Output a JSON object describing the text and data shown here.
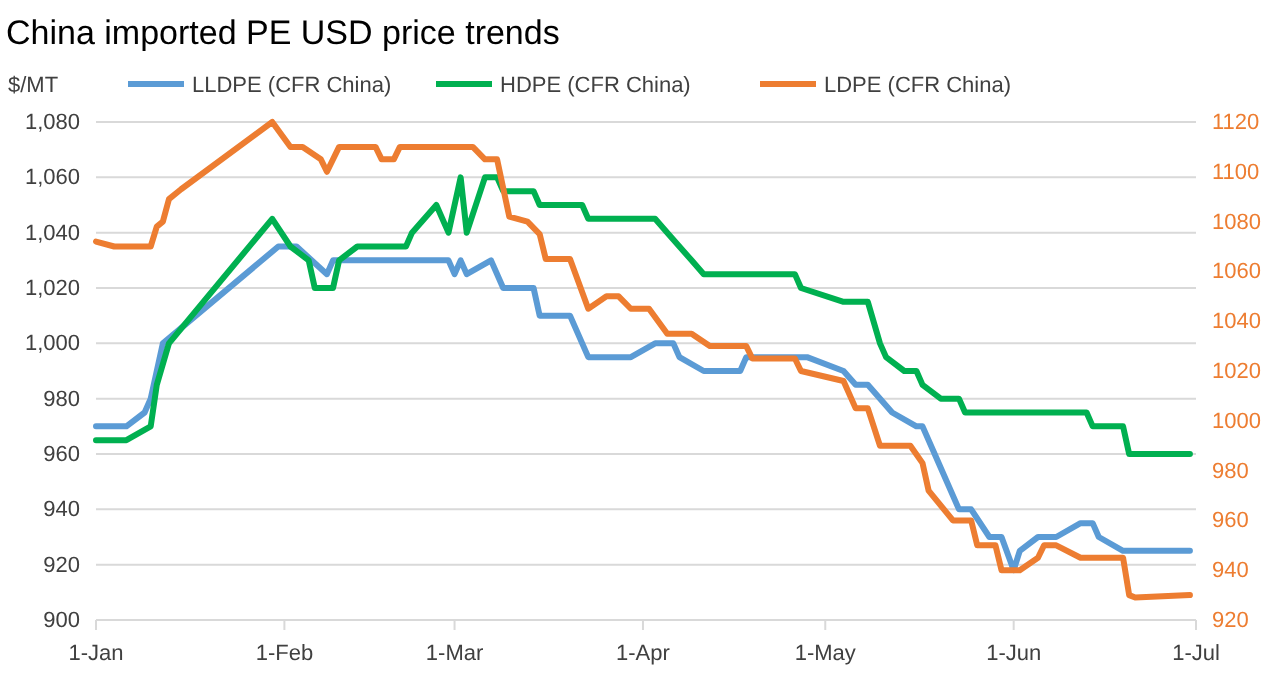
{
  "chart_data": {
    "type": "line",
    "title": "China imported PE USD price trends",
    "ylabel": "$/MT",
    "legend": "top",
    "grid": "y",
    "line_style": "solid",
    "marker": "none",
    "xlim": [
      "--01-01",
      "--07-01"
    ],
    "xticks": [
      {
        "value": "--01-01",
        "label": "1-Jan"
      },
      {
        "value": "--02-01",
        "label": "1-Feb"
      },
      {
        "value": "--03-01",
        "label": "1-Mar"
      },
      {
        "value": "--04-01",
        "label": "1-Apr"
      },
      {
        "value": "--05-01",
        "label": "1-May"
      },
      {
        "value": "--06-01",
        "label": "1-Jun"
      },
      {
        "value": "--07-01",
        "label": "1-Jul"
      }
    ],
    "ylim": [
      900,
      1080
    ],
    "yticks": [
      {
        "value": 900,
        "label": "900"
      },
      {
        "value": 920,
        "label": "920"
      },
      {
        "value": 940,
        "label": "940"
      },
      {
        "value": 960,
        "label": "960"
      },
      {
        "value": 980,
        "label": "980"
      },
      {
        "value": 1000,
        "label": "1,000"
      },
      {
        "value": 1020,
        "label": "1,020"
      },
      {
        "value": 1040,
        "label": "1,040"
      },
      {
        "value": 1060,
        "label": "1,060"
      },
      {
        "value": 1080,
        "label": "1,080"
      }
    ],
    "y2lim": [
      920,
      1120
    ],
    "y2ticks": [
      920,
      940,
      960,
      980,
      1000,
      1020,
      1040,
      1060,
      1080,
      1100,
      1120
    ],
    "series": [
      {
        "name": "LLDPE (CFR China)",
        "color": "#5b9bd5",
        "x": [
          "--01-01",
          "--01-06",
          "--01-09",
          "--01-10",
          "--01-12",
          "--01-31",
          "--02-03",
          "--02-08",
          "--02-09",
          "--02-28",
          "--03-01",
          "--03-02",
          "--03-03",
          "--03-07",
          "--03-09",
          "--03-14",
          "--03-15",
          "--03-20",
          "--03-23",
          "--03-30",
          "--04-03",
          "--04-06",
          "--04-07",
          "--04-11",
          "--04-17",
          "--04-18",
          "--04-28",
          "--05-04",
          "--05-06",
          "--05-08",
          "--05-12",
          "--05-16",
          "--05-17",
          "--05-19",
          "--05-23",
          "--05-25",
          "--05-28",
          "--05-30",
          "--06-01",
          "--06-02",
          "--06-05",
          "--06-08",
          "--06-12",
          "--06-14",
          "--06-15",
          "--06-19",
          "--06-30"
        ],
        "values": [
          970,
          970,
          975,
          980,
          1000,
          1035,
          1035,
          1025,
          1030,
          1030,
          1025,
          1030,
          1025,
          1030,
          1020,
          1020,
          1010,
          1010,
          995,
          995,
          1000,
          1000,
          995,
          990,
          990,
          995,
          995,
          990,
          985,
          985,
          975,
          970,
          970,
          960,
          940,
          940,
          930,
          930,
          918,
          925,
          930,
          930,
          935,
          935,
          930,
          925,
          925
        ]
      },
      {
        "name": "HDPE (CFR China)",
        "color": "#00b050",
        "x": [
          "--01-01",
          "--01-06",
          "--01-10",
          "--01-11",
          "--01-13",
          "--01-30",
          "--02-02",
          "--02-05",
          "--02-06",
          "--02-09",
          "--02-10",
          "--02-13",
          "--02-21",
          "--02-22",
          "--02-26",
          "--02-28",
          "--03-02",
          "--03-03",
          "--03-06",
          "--03-08",
          "--03-09",
          "--03-14",
          "--03-15",
          "--03-22",
          "--03-23",
          "--04-03",
          "--04-05",
          "--04-09",
          "--04-11",
          "--04-26",
          "--04-27",
          "--05-04",
          "--05-08",
          "--05-10",
          "--05-11",
          "--05-14",
          "--05-16",
          "--05-17",
          "--05-20",
          "--05-23",
          "--05-24",
          "--06-13",
          "--06-14",
          "--06-19",
          "--06-20",
          "--06-30"
        ],
        "values": [
          965,
          965,
          970,
          985,
          1000,
          1045,
          1035,
          1030,
          1020,
          1020,
          1030,
          1035,
          1035,
          1040,
          1050,
          1040,
          1060,
          1040,
          1060,
          1060,
          1055,
          1055,
          1050,
          1050,
          1045,
          1045,
          1040,
          1030,
          1025,
          1025,
          1020,
          1015,
          1015,
          1000,
          995,
          990,
          990,
          985,
          980,
          980,
          975,
          975,
          970,
          970,
          960,
          960
        ]
      },
      {
        "name": "LDPE (CFR China)",
        "color": "#ed7d31",
        "axis": "y2",
        "x": [
          "--01-01",
          "--01-04",
          "--01-10",
          "--01-11",
          "--01-12",
          "--01-13",
          "--01-15",
          "--01-30",
          "--02-02",
          "--02-04",
          "--02-07",
          "--02-08",
          "--02-10",
          "--02-16",
          "--02-17",
          "--02-19",
          "--02-20",
          "--03-04",
          "--03-06",
          "--03-08",
          "--03-10",
          "--03-13",
          "--03-15",
          "--03-16",
          "--03-20",
          "--03-23",
          "--03-26",
          "--03-28",
          "--03-30",
          "--04-02",
          "--04-05",
          "--04-09",
          "--04-12",
          "--04-18",
          "--04-19",
          "--04-26",
          "--04-27",
          "--05-04",
          "--05-06",
          "--05-08",
          "--05-10",
          "--05-15",
          "--05-17",
          "--05-18",
          "--05-22",
          "--05-25",
          "--05-26",
          "--05-29",
          "--05-30",
          "--06-02",
          "--06-05",
          "--06-06",
          "--06-08",
          "--06-12",
          "--06-19",
          "--06-20",
          "--06-21",
          "--06-30"
        ],
        "values": [
          1072,
          1070,
          1070,
          1078,
          1080,
          1089,
          1093,
          1120,
          1110,
          1110,
          1105,
          1100,
          1110,
          1110,
          1105,
          1105,
          1110,
          1110,
          1105,
          1105,
          1082,
          1080,
          1075,
          1065,
          1065,
          1045,
          1050,
          1050,
          1045,
          1045,
          1035,
          1035,
          1030,
          1030,
          1025,
          1025,
          1020,
          1016,
          1005,
          1005,
          990,
          990,
          983,
          972,
          960,
          960,
          950,
          950,
          940,
          940,
          945,
          950,
          950,
          945,
          945,
          930,
          929,
          930
        ]
      }
    ]
  }
}
